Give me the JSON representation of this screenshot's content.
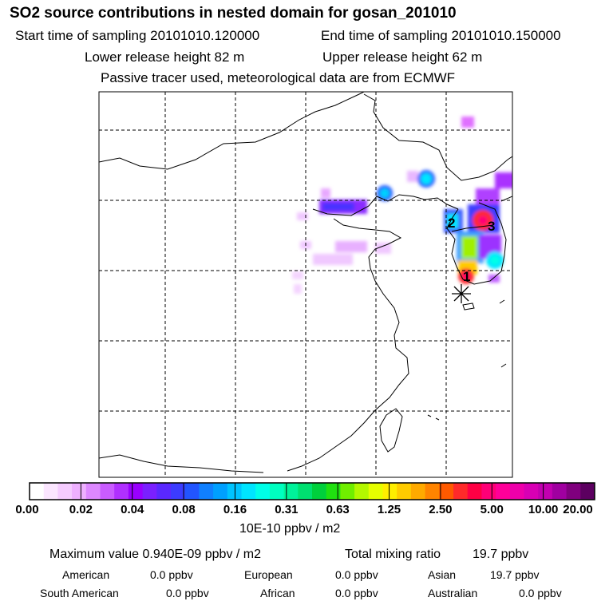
{
  "header": {
    "title": "SO2 source contributions in nested domain for gosan_201010",
    "start_time": "Start time of sampling 20101010.120000",
    "end_time": "End time of sampling 20101010.150000",
    "lower_height": "Lower release height   82 m",
    "upper_height": "Upper release height   62 m",
    "note": "Passive tracer used, meteorological data are from ECMWF"
  },
  "map": {
    "region": "East Asia nested domain",
    "receptor_symbol": "asterisk",
    "source_markers": [
      {
        "label": "1"
      },
      {
        "label": "2"
      },
      {
        "label": "3"
      }
    ]
  },
  "colorbar": {
    "unit": "10E-10 ppbv / m2",
    "ticks": [
      "0.00",
      "0.02",
      "0.04",
      "0.08",
      "0.16",
      "0.31",
      "0.63",
      "1.25",
      "2.50",
      "5.00",
      "10.00",
      "20.00"
    ],
    "colors": [
      "#ffffff",
      "#fbe6ff",
      "#f5ccff",
      "#eeb0ff",
      "#dd88ff",
      "#c95cff",
      "#b030ff",
      "#9900ff",
      "#7a20ff",
      "#5a28ff",
      "#3c3cff",
      "#2255ff",
      "#1080ff",
      "#00a0ff",
      "#00c4ff",
      "#00e5ff",
      "#00ffe8",
      "#00ffc0",
      "#00f29a",
      "#00e070",
      "#00d03c",
      "#20e010",
      "#70ee00",
      "#b4f800",
      "#e6ff00",
      "#ffee00",
      "#ffcc00",
      "#ffaa00",
      "#ff8400",
      "#ff5a00",
      "#ff2a2a",
      "#ff0044",
      "#ff0077",
      "#ff0099",
      "#ee00aa",
      "#d800b4",
      "#c200b0",
      "#a000a0",
      "#80007e",
      "#5c0060"
    ]
  },
  "stats": {
    "max_label": "Maximum value  0.940E-09 ppbv / m2",
    "total_label": "Total mixing ratio",
    "total_value": "19.7 ppbv",
    "regions": [
      {
        "name": "American",
        "value": "0.0 ppbv"
      },
      {
        "name": "European",
        "value": "0.0 ppbv"
      },
      {
        "name": "Asian",
        "value": "19.7 ppbv"
      },
      {
        "name": "South American",
        "value": "0.0 ppbv"
      },
      {
        "name": "African",
        "value": "0.0 ppbv"
      },
      {
        "name": "Australian",
        "value": "0.0 ppbv"
      }
    ]
  }
}
